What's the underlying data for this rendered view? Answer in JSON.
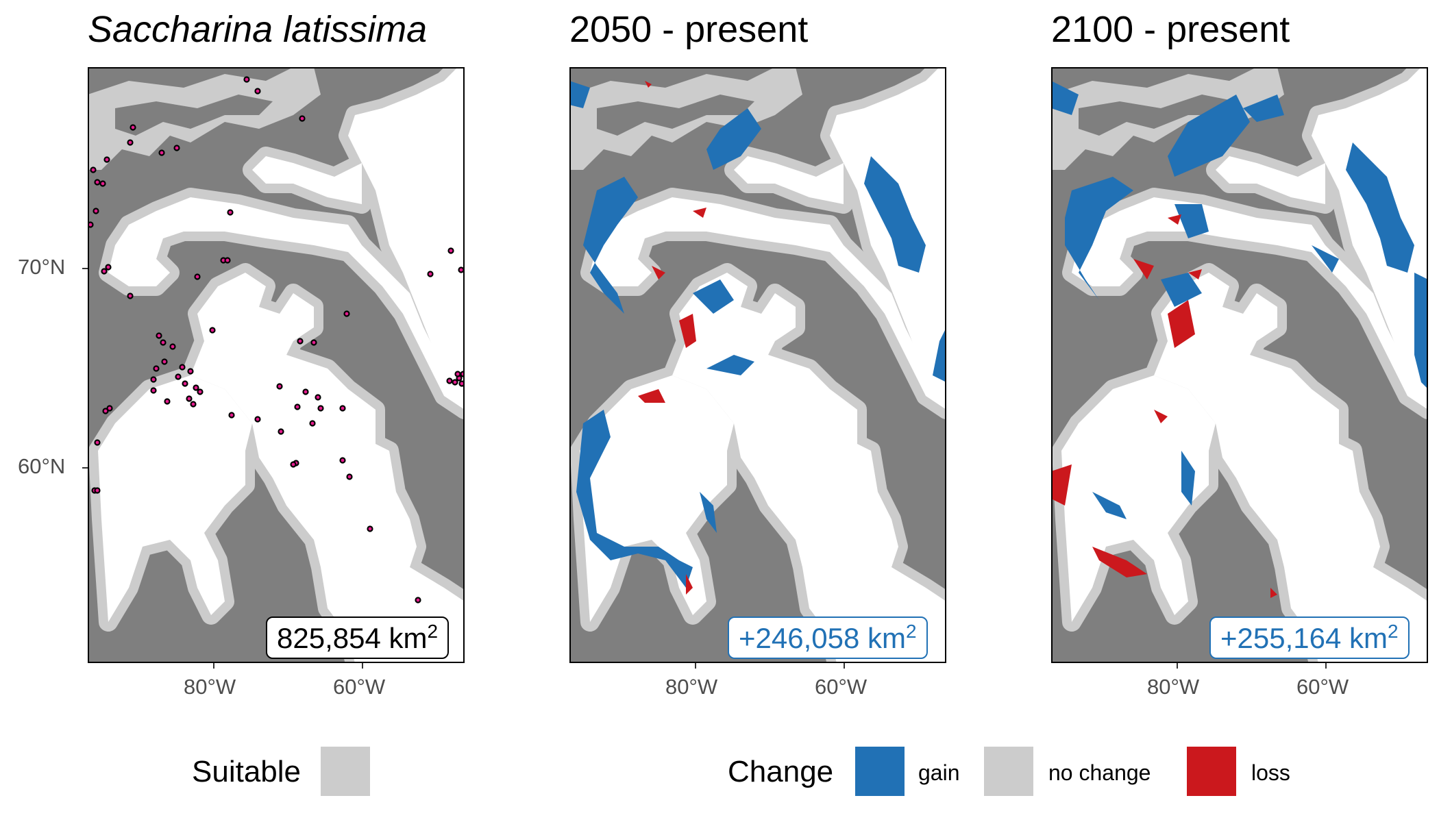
{
  "panels": [
    {
      "title": "Saccharina latissima",
      "area_value": "825,854",
      "area_unit": "km",
      "area_exp": "2"
    },
    {
      "title": "2050 - present",
      "area_value": "+246,058",
      "area_unit": "km",
      "area_exp": "2"
    },
    {
      "title": "2100 - present",
      "area_value": "+255,164",
      "area_unit": "km",
      "area_exp": "2"
    }
  ],
  "axes": {
    "y_ticks": [
      "70°N",
      "60°N"
    ],
    "x_ticks": [
      "80°W",
      "60°W"
    ]
  },
  "legend_left": {
    "title": "Suitable",
    "color": "#cccccc"
  },
  "legend_right": {
    "title": "Change",
    "items": [
      {
        "label": "gain",
        "color": "#2171b5"
      },
      {
        "label": "no change",
        "color": "#cccccc"
      },
      {
        "label": "loss",
        "color": "#cb181d"
      }
    ]
  },
  "colors": {
    "land": "#7f7f7f",
    "sea": "#ffffff",
    "suitable": "#cccccc",
    "gain": "#2171b5",
    "loss": "#cb181d",
    "occurrence": "#e41a8c"
  }
}
